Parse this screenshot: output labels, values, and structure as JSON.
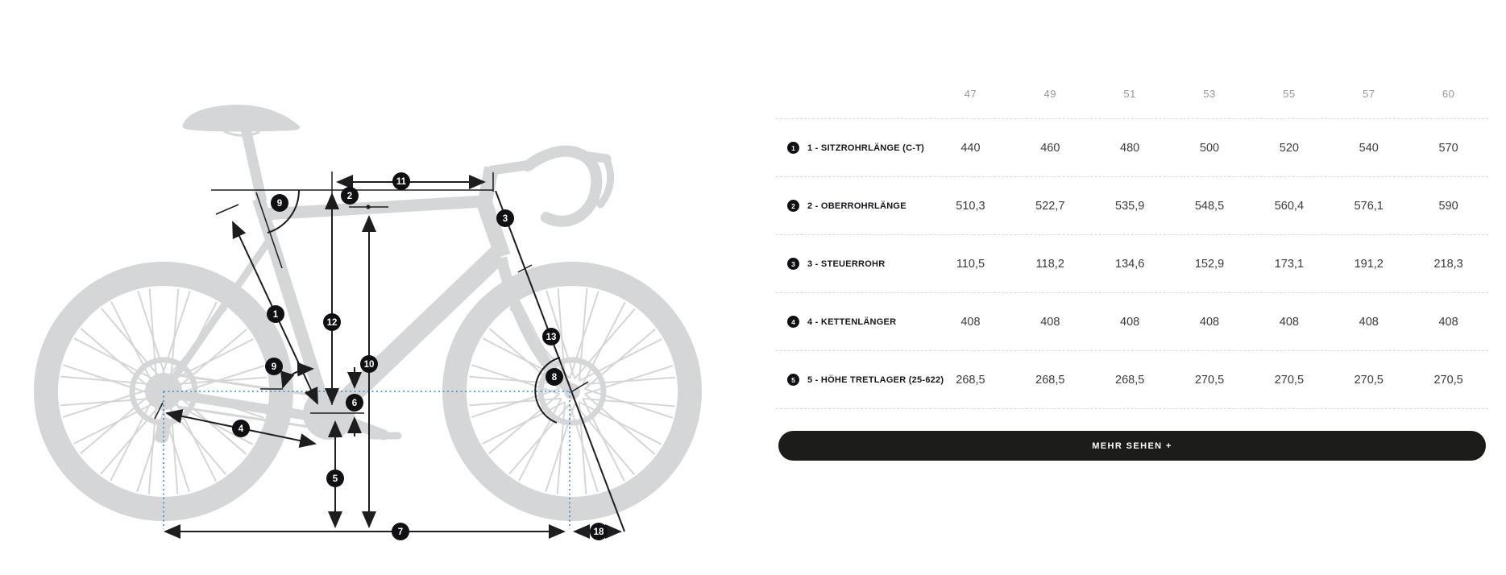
{
  "table": {
    "sizes": [
      "47",
      "49",
      "51",
      "53",
      "55",
      "57",
      "60"
    ],
    "rows": [
      {
        "num": "1",
        "label": "1 - SITZROHRLÄNGE (C-T)",
        "values": [
          "440",
          "460",
          "480",
          "500",
          "520",
          "540",
          "570"
        ]
      },
      {
        "num": "2",
        "label": "2 - OBERROHRLÄNGE",
        "values": [
          "510,3",
          "522,7",
          "535,9",
          "548,5",
          "560,4",
          "576,1",
          "590"
        ]
      },
      {
        "num": "3",
        "label": "3 - STEUERROHR",
        "values": [
          "110,5",
          "118,2",
          "134,6",
          "152,9",
          "173,1",
          "191,2",
          "218,3"
        ]
      },
      {
        "num": "4",
        "label": "4 - KETTENLÄNGER",
        "values": [
          "408",
          "408",
          "408",
          "408",
          "408",
          "408",
          "408"
        ]
      },
      {
        "num": "5",
        "label": "5 - HÖHE TRETLAGER (25-622)",
        "values": [
          "268,5",
          "268,5",
          "268,5",
          "270,5",
          "270,5",
          "270,5",
          "270,5"
        ]
      }
    ],
    "more_button": "MEHR SEHEN +"
  },
  "diagram": {
    "markers": {
      "m1": "1",
      "m2": "2",
      "m3": "3",
      "m4": "4",
      "m5": "5",
      "m6": "6",
      "m7": "7",
      "m8": "8",
      "m9a": "9",
      "m9b": "9",
      "m10": "10",
      "m11": "11",
      "m12": "12",
      "m13": "13",
      "m18": "18"
    },
    "colors": {
      "silhouette": "#d5d6d8",
      "measure_line": "#1d1d1f",
      "reference_blue": "#3e86c6",
      "marker_bg": "#101014",
      "marker_text": "#ffffff"
    }
  },
  "colors": {
    "background": "#ffffff",
    "header_text": "#95959a",
    "value_text": "#3b3b40",
    "label_text": "#15151b",
    "divider": "#d8d8d8",
    "button_bg": "#1c1c1a",
    "button_text": "#ffffff"
  }
}
